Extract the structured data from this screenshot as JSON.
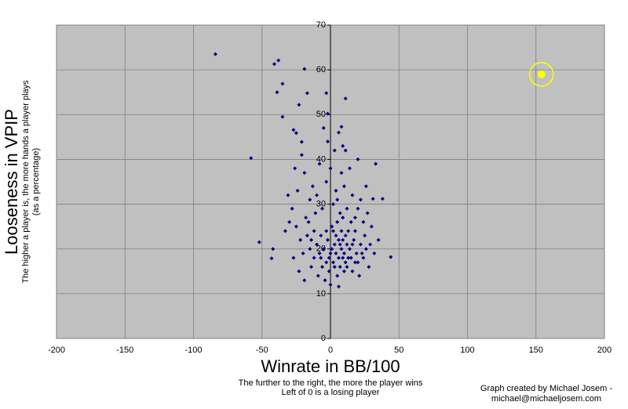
{
  "chart_data": {
    "type": "scatter",
    "y_label": "Looseness in VPIP",
    "y_subtitle": [
      "The higher a player is, the more hands a player plays",
      "(as a percentage)"
    ],
    "x_label": "Winrate in BB/100",
    "x_subtitle": [
      "The further to the right, the more the player wins",
      "Left of 0 is a losing player"
    ],
    "credit": [
      "Graph created by Michael Josem -",
      "michael@michaeljosem.com"
    ],
    "xlim": [
      -200,
      200
    ],
    "ylim": [
      0,
      70
    ],
    "xticks": [
      -200,
      -150,
      -100,
      -50,
      0,
      50,
      100,
      150,
      200
    ],
    "yticks": [
      0,
      10,
      20,
      30,
      40,
      50,
      60,
      70
    ],
    "grid": true,
    "background": "#c0c0c0",
    "series": [
      {
        "color": "#000080",
        "marker": "diamond",
        "x": [
          -84,
          -41,
          -38,
          -35,
          -39,
          -19,
          -23,
          -17,
          -3,
          11,
          -35,
          -2,
          8,
          -27,
          -25,
          -58,
          -21,
          33,
          -52,
          -42,
          -43,
          44,
          38,
          31,
          6,
          -5,
          0,
          3,
          6,
          8,
          10,
          12,
          2,
          -2,
          4,
          7,
          9,
          11,
          14,
          15,
          -8,
          -10,
          -12,
          -6,
          -3,
          1,
          5,
          8,
          13,
          17,
          19,
          20,
          22,
          -15,
          -17,
          -14,
          -9,
          -4,
          0,
          5,
          10,
          16,
          21,
          24,
          26,
          28,
          -20,
          -22,
          -25,
          -18,
          -11,
          -6,
          2,
          7,
          12,
          18,
          24,
          30,
          -28,
          -30,
          -24,
          -13,
          -3,
          4,
          10,
          16,
          22,
          -19,
          -8,
          0,
          8,
          14,
          20,
          -26,
          -15,
          3,
          -2,
          11,
          -5,
          6,
          -31,
          -33,
          25,
          29,
          27,
          32,
          35,
          -27,
          -23,
          -19,
          -1,
          3,
          6,
          9,
          1,
          -1,
          4,
          7,
          11,
          13,
          16,
          18,
          -7,
          -12,
          -16,
          9,
          15,
          20,
          -10,
          5,
          26,
          -21,
          9,
          18,
          23,
          -3,
          2,
          12,
          -14,
          -7
        ],
        "values": [
          63.5,
          61.3,
          62.1,
          56.9,
          55,
          60.2,
          52.2,
          54.8,
          54.8,
          53.6,
          49.5,
          50.2,
          47.3,
          46.6,
          45.9,
          40.3,
          43.9,
          39,
          21.5,
          20,
          17.9,
          18.2,
          31.2,
          31.2,
          11.6,
          20,
          19,
          21,
          18,
          20,
          19,
          21,
          17,
          22,
          23,
          16,
          22,
          17,
          20,
          18,
          19,
          21,
          18,
          16,
          24,
          25,
          26,
          24,
          24,
          22,
          19,
          17,
          21,
          20,
          23,
          16,
          14,
          13,
          12,
          14,
          15,
          15,
          14,
          18,
          20,
          16,
          19,
          22,
          25,
          27,
          28,
          29,
          30,
          28,
          29,
          27,
          26,
          25,
          29,
          26,
          33,
          34,
          35,
          33,
          34,
          32,
          31,
          37,
          39,
          38,
          37,
          38,
          40,
          38,
          31,
          42,
          44,
          42,
          47,
          46,
          32,
          24,
          23,
          21,
          28,
          19,
          22,
          18,
          15,
          13,
          15,
          16,
          22,
          18,
          20,
          18,
          19,
          21,
          23,
          18,
          21,
          24,
          23,
          24,
          26,
          27,
          26,
          29,
          32,
          31,
          34,
          41,
          43,
          17,
          19,
          17,
          24,
          16,
          22,
          18
        ]
      },
      {
        "color": "#ffff00",
        "marker": "ringed-circle",
        "x": [
          154
        ],
        "values": [
          59
        ]
      }
    ]
  }
}
